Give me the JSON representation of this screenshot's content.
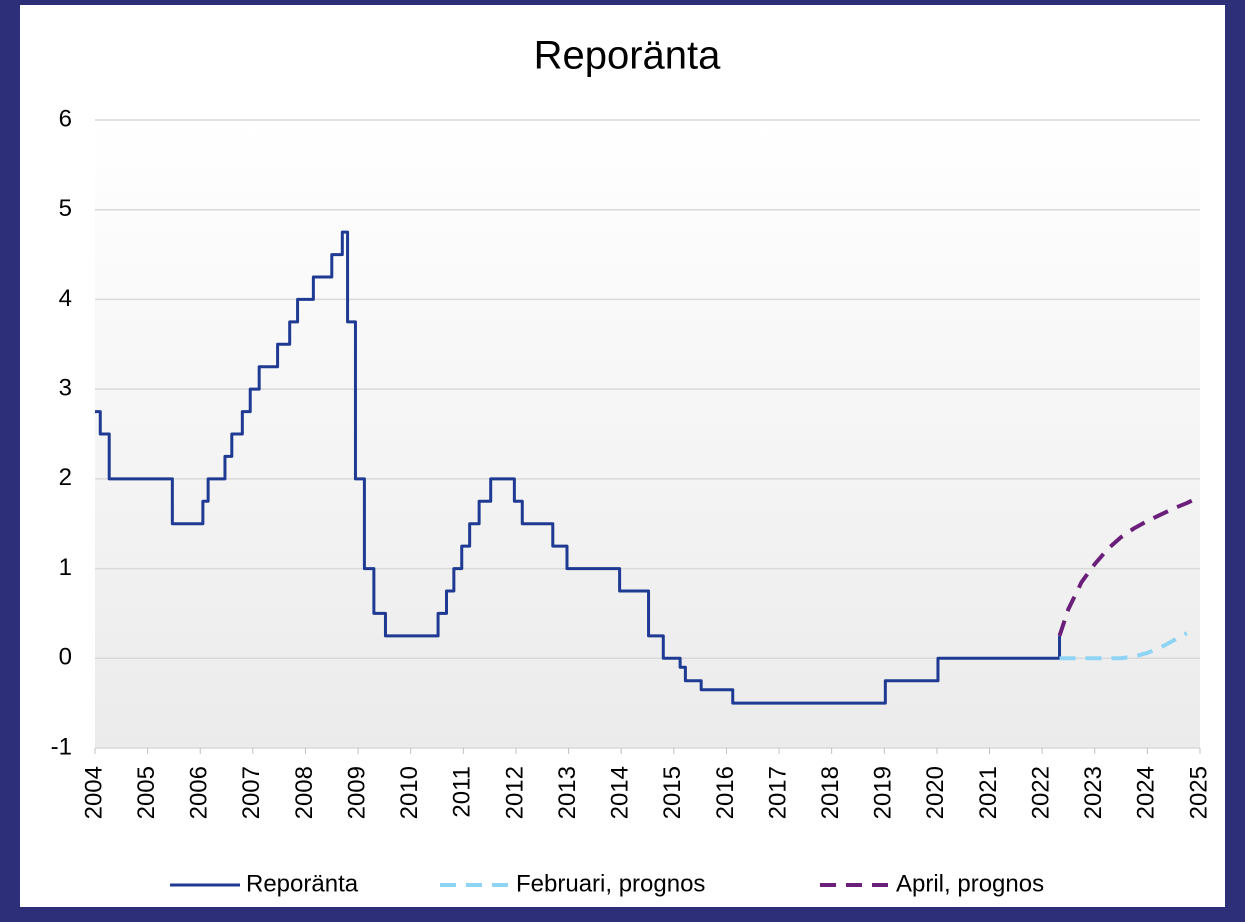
{
  "chart_data": {
    "type": "line",
    "title": "Reporänta",
    "xlim": [
      2004,
      2025
    ],
    "xticks": [
      2004,
      2005,
      2006,
      2007,
      2008,
      2009,
      2010,
      2011,
      2012,
      2013,
      2014,
      2015,
      2016,
      2017,
      2018,
      2019,
      2020,
      2021,
      2022,
      2023,
      2024,
      2025
    ],
    "ylim": [
      -1,
      6
    ],
    "yticks": [
      -1,
      0,
      1,
      2,
      3,
      4,
      5,
      6
    ],
    "grid": true,
    "legend": "bottom",
    "series": [
      {
        "name": "Reporänta",
        "color": "#1f3a93",
        "dash": "solid",
        "x": [
          2004.0,
          2004.1,
          2004.1,
          2004.27,
          2004.27,
          2005.47,
          2005.47,
          2006.05,
          2006.05,
          2006.15,
          2006.15,
          2006.47,
          2006.47,
          2006.6,
          2006.6,
          2006.8,
          2006.8,
          2006.95,
          2006.95,
          2007.12,
          2007.12,
          2007.47,
          2007.47,
          2007.7,
          2007.7,
          2007.85,
          2007.85,
          2008.15,
          2008.15,
          2008.5,
          2008.5,
          2008.7,
          2008.7,
          2008.8,
          2008.8,
          2008.95,
          2008.95,
          2009.12,
          2009.12,
          2009.3,
          2009.3,
          2009.52,
          2009.52,
          2010.52,
          2010.52,
          2010.68,
          2010.68,
          2010.82,
          2010.82,
          2010.97,
          2010.97,
          2011.12,
          2011.12,
          2011.3,
          2011.3,
          2011.52,
          2011.52,
          2011.97,
          2011.97,
          2012.12,
          2012.12,
          2012.7,
          2012.7,
          2012.97,
          2012.97,
          2013.97,
          2013.97,
          2014.52,
          2014.52,
          2014.8,
          2014.8,
          2015.12,
          2015.12,
          2015.22,
          2015.22,
          2015.52,
          2015.52,
          2016.12,
          2016.12,
          2019.02,
          2019.02,
          2020.02,
          2020.02,
          2022.33,
          2022.33
        ],
        "values": [
          2.75,
          2.75,
          2.5,
          2.5,
          2.0,
          2.0,
          1.5,
          1.5,
          1.75,
          1.75,
          2.0,
          2.0,
          2.25,
          2.25,
          2.5,
          2.5,
          2.75,
          2.75,
          3.0,
          3.0,
          3.25,
          3.25,
          3.5,
          3.5,
          3.75,
          3.75,
          4.0,
          4.0,
          4.25,
          4.25,
          4.5,
          4.5,
          4.75,
          4.75,
          3.75,
          3.75,
          2.0,
          2.0,
          1.0,
          1.0,
          0.5,
          0.5,
          0.25,
          0.25,
          0.5,
          0.5,
          0.75,
          0.75,
          1.0,
          1.0,
          1.25,
          1.25,
          1.5,
          1.5,
          1.75,
          1.75,
          2.0,
          2.0,
          1.75,
          1.75,
          1.5,
          1.5,
          1.25,
          1.25,
          1.0,
          1.0,
          0.75,
          0.75,
          0.25,
          0.25,
          0.0,
          0.0,
          -0.1,
          -0.1,
          -0.25,
          -0.25,
          -0.35,
          -0.35,
          -0.5,
          -0.5,
          -0.25,
          -0.25,
          0.0,
          0.0,
          0.25
        ]
      },
      {
        "name": "Februari, prognos",
        "color": "#8fd3f5",
        "dash": "dashed",
        "x": [
          2022.33,
          2022.5,
          2022.75,
          2023.0,
          2023.25,
          2023.5,
          2023.75,
          2024.0,
          2024.25,
          2024.5,
          2024.75
        ],
        "values": [
          0,
          0,
          0,
          0,
          0,
          0,
          0.02,
          0.06,
          0.12,
          0.2,
          0.28
        ]
      },
      {
        "name": "April, prognos",
        "color": "#6a1f7a",
        "dash": "dashed",
        "x": [
          2022.33,
          2022.5,
          2022.75,
          2023.0,
          2023.25,
          2023.5,
          2023.75,
          2024.0,
          2024.25,
          2024.5,
          2024.75,
          2025.0
        ],
        "values": [
          0.25,
          0.55,
          0.85,
          1.05,
          1.22,
          1.35,
          1.45,
          1.53,
          1.6,
          1.67,
          1.73,
          1.8
        ]
      }
    ]
  }
}
